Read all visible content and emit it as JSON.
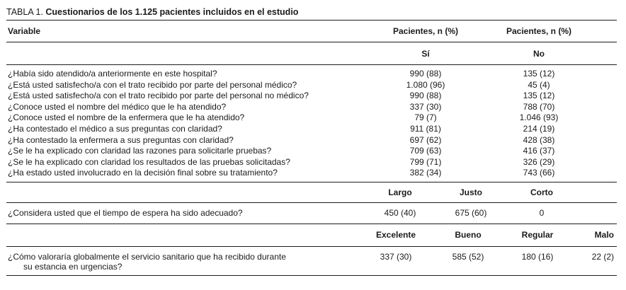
{
  "title": {
    "prefix": "TABLA 1.",
    "text": "Cuestionarios de los 1.125 pacientes incluidos en el estudio"
  },
  "table": {
    "variable_header": "Variable",
    "section1": {
      "col_headers": [
        "Pacientes, n (%)",
        "Pacientes, n (%)"
      ],
      "sub_headers": [
        "Sí",
        "No"
      ],
      "rows": [
        {
          "question": "¿Había sido atendido/a anteriormente en este hospital?",
          "si": "990 (88)",
          "no": "135 (12)"
        },
        {
          "question": "¿Está usted satisfecho/a con el trato recibido por parte del personal médico?",
          "si": "1.080 (96)",
          "no": "45 (4)"
        },
        {
          "question": "¿Está usted satisfecho/a con el trato recibido por parte del personal no médico?",
          "si": "990 (88)",
          "no": "135 (12)"
        },
        {
          "question": "¿Conoce usted el nombre del médico que le ha atendido?",
          "si": "337 (30)",
          "no": "788 (70)"
        },
        {
          "question": "¿Conoce usted el nombre de la enfermera que le ha atendido?",
          "si": "79 (7)",
          "no": "1.046 (93)"
        },
        {
          "question": "¿Ha contestado el médico a sus preguntas con claridad?",
          "si": "911 (81)",
          "no": "214 (19)"
        },
        {
          "question": "¿Ha contestado la enfermera a sus preguntas con claridad?",
          "si": "697 (62)",
          "no": "428 (38)"
        },
        {
          "question": "¿Se le ha explicado con claridad las razones para solicitarle pruebas?",
          "si": "709 (63)",
          "no": "416 (37)"
        },
        {
          "question": "¿Se le ha explicado con claridad los resultados de las pruebas solicitadas?",
          "si": "799 (71)",
          "no": "326 (29)"
        },
        {
          "question": "¿Ha estado usted involucrado en la decisión final sobre su tratamiento?",
          "si": "382 (34)",
          "no": "743 (66)"
        }
      ]
    },
    "section2": {
      "col_headers": [
        "Largo",
        "Justo",
        "Corto"
      ],
      "row": {
        "question": "¿Considera usted que el tiempo de espera ha sido adecuado?",
        "values": [
          "450 (40)",
          "675 (60)",
          "0"
        ]
      }
    },
    "section3": {
      "col_headers": [
        "Excelente",
        "Bueno",
        "Regular",
        "Malo"
      ],
      "row": {
        "question_line1": "¿Cómo valoraría globalmente el servicio sanitario que ha recibido durante",
        "question_line2": "su estancia en urgencias?",
        "values": [
          "337 (30)",
          "585 (52)",
          "180 (16)",
          "22 (2)"
        ]
      }
    }
  },
  "colors": {
    "text": "#1b1b1b",
    "rule": "#1c1c1c",
    "background": "#ffffff"
  }
}
